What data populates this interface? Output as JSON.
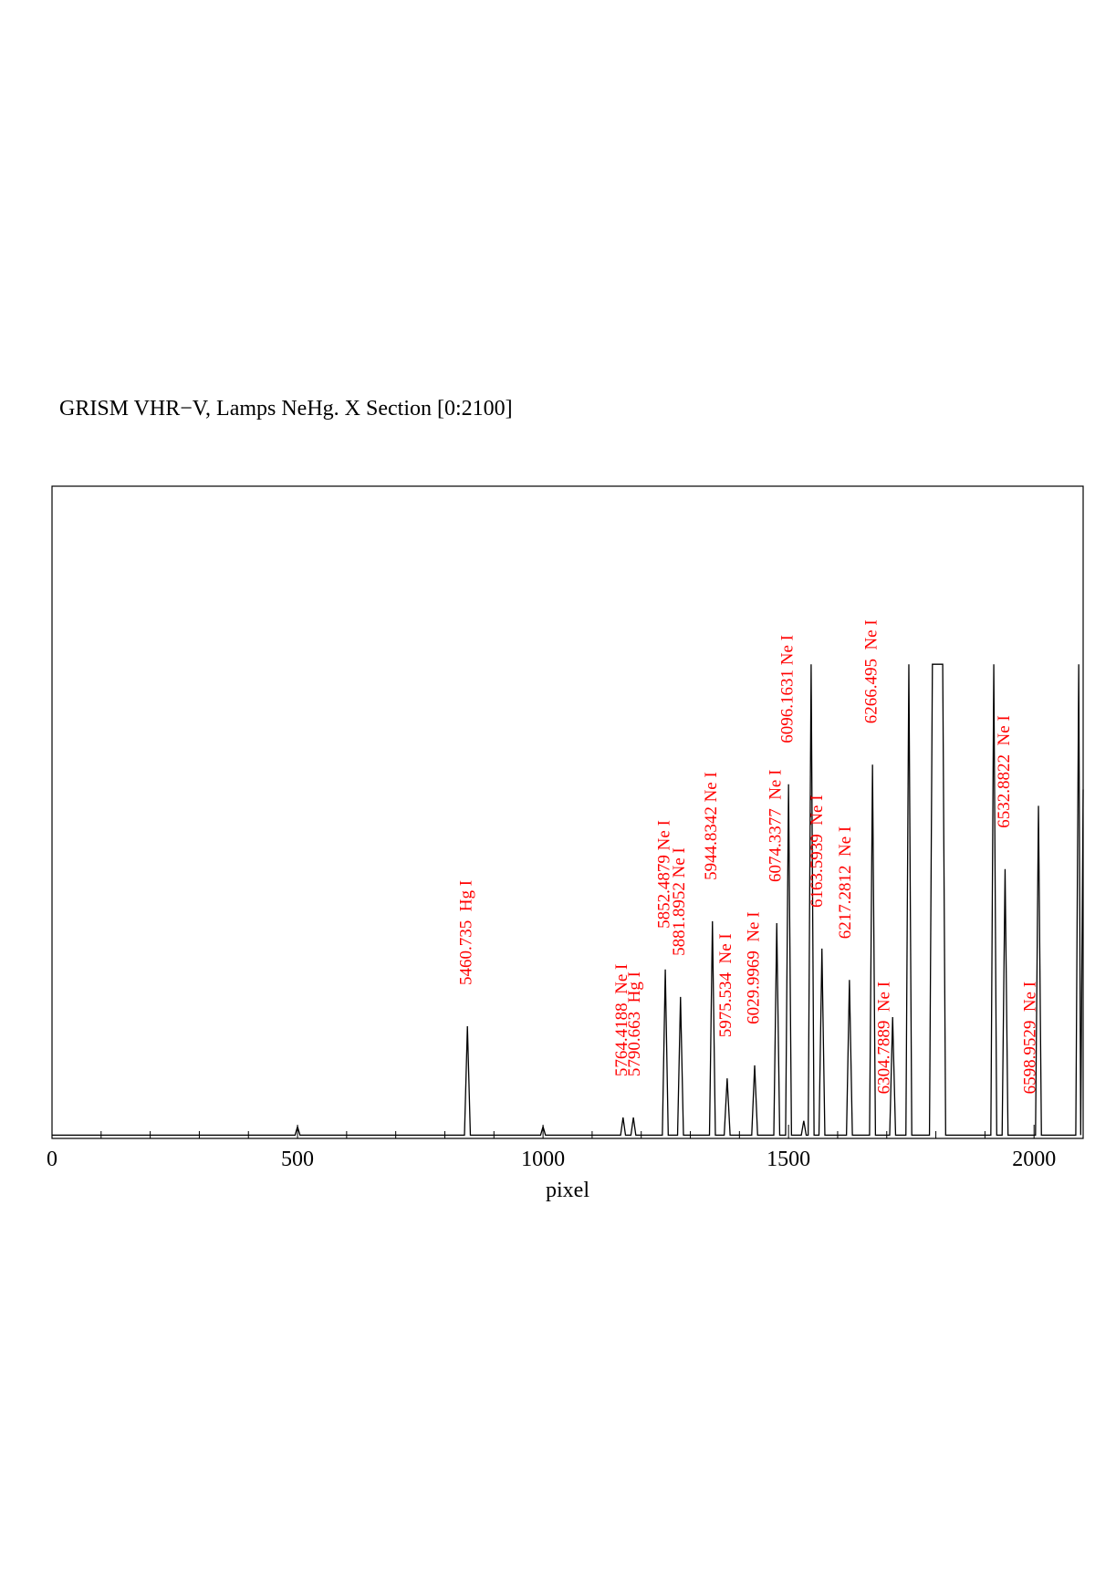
{
  "chart_data": {
    "type": "line",
    "title": "GRISM VHR−V, Lamps NeHg. X Section [0:2100]",
    "xlabel": "pixel",
    "xlim": [
      0,
      2100
    ],
    "xticks": [
      0,
      500,
      1000,
      1500,
      2000
    ],
    "xminorticks": [
      100,
      200,
      300,
      400,
      600,
      700,
      800,
      900,
      1100,
      1200,
      1300,
      1400,
      1600,
      1700,
      1800,
      1900,
      2100
    ],
    "ylim": [
      0,
      1000
    ],
    "color": "#000000",
    "annotation_color": "#ff0000",
    "x": [
      0,
      495,
      500,
      505,
      840,
      846,
      852,
      995,
      1000,
      1005,
      1158,
      1163,
      1168,
      1179,
      1184,
      1189,
      1243,
      1249,
      1255,
      1274,
      1280,
      1286,
      1339,
      1345,
      1351,
      1369,
      1375,
      1381,
      1425,
      1431,
      1437,
      1470,
      1476,
      1482,
      1494,
      1500,
      1506,
      1526,
      1531,
      1536,
      1540,
      1546,
      1552,
      1562,
      1568,
      1574,
      1618,
      1624,
      1630,
      1665,
      1671,
      1677,
      1706,
      1712,
      1718,
      1739,
      1745,
      1751,
      1787,
      1793,
      1814,
      1820,
      1912,
      1918,
      1924,
      1935,
      1941,
      1947,
      2003,
      2009,
      2015,
      2085,
      2091,
      2095,
      2100
    ],
    "y": [
      5,
      5,
      18,
      5,
      5,
      172,
      5,
      5,
      18,
      5,
      5,
      32,
      5,
      5,
      32,
      5,
      5,
      259,
      5,
      5,
      217,
      5,
      5,
      333,
      5,
      5,
      92,
      5,
      5,
      112,
      5,
      5,
      330,
      5,
      5,
      543,
      5,
      5,
      27,
      5,
      5,
      727,
      5,
      5,
      291,
      5,
      5,
      243,
      5,
      5,
      573,
      5,
      5,
      186,
      5,
      5,
      727,
      5,
      5,
      727,
      727,
      5,
      5,
      727,
      5,
      5,
      413,
      5,
      5,
      510,
      5,
      5,
      727,
      5,
      535
    ],
    "annotations": [
      {
        "x": 846,
        "label": "5460.735  Hg I"
      },
      {
        "x": 1163,
        "label": "5764.4188  Ne I"
      },
      {
        "x": 1189,
        "label": "5790.663  Hg I"
      },
      {
        "x": 1249,
        "label": "5852.4879 Ne I"
      },
      {
        "x": 1280,
        "label": "5881.8952 Ne I"
      },
      {
        "x": 1345,
        "label": "5944.8342 Ne I"
      },
      {
        "x": 1375,
        "label": "5975.534  Ne I"
      },
      {
        "x": 1431,
        "label": "6029.9969  Ne I"
      },
      {
        "x": 1476,
        "label": "6074.3377  Ne I"
      },
      {
        "x": 1500,
        "label": "6096.1631 Ne I"
      },
      {
        "x": 1560,
        "label": "6163.5939  Ne I"
      },
      {
        "x": 1618,
        "label": "6217.2812  Ne I"
      },
      {
        "x": 1671,
        "label": "6266.495  Ne I"
      },
      {
        "x": 1697,
        "label": "6304.7889  Ne I"
      },
      {
        "x": 1941,
        "label": "6532.8822  Ne I"
      },
      {
        "x": 1994,
        "label": "6598.9529  Ne I"
      }
    ]
  }
}
